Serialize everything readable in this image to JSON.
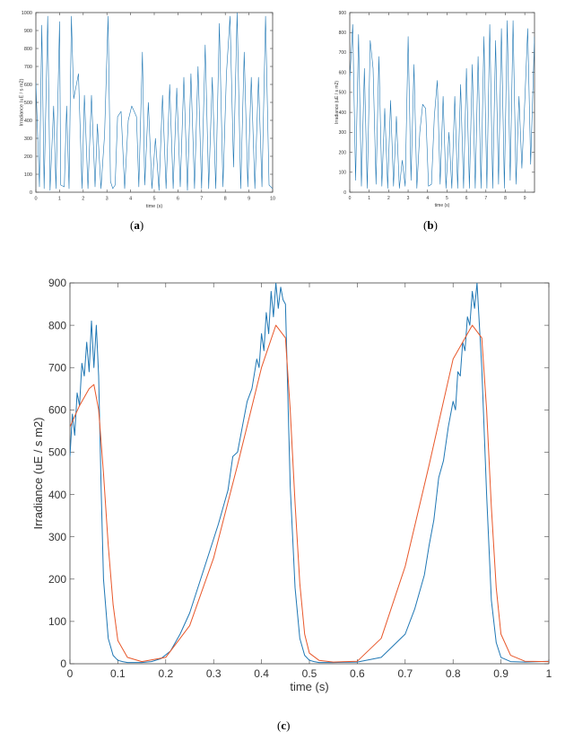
{
  "colors": {
    "series_blue": "#1f77b4",
    "series_red": "#e8572a",
    "axis": "#444444",
    "text": "#333333"
  },
  "labels": {
    "a": "a",
    "b": "b",
    "c": "c"
  },
  "chart_data": [
    {
      "type": "line",
      "ylabel": "Irradiance (uE / s m2)",
      "xlabel": "time (s)",
      "xlim": [
        0,
        10
      ],
      "ylim": [
        0,
        1000
      ],
      "xticks": [
        0,
        1,
        2,
        3,
        4,
        5,
        6,
        7,
        8,
        9,
        10
      ],
      "yticks": [
        0,
        100,
        200,
        300,
        400,
        500,
        600,
        700,
        800,
        900,
        1000
      ],
      "series": [
        {
          "color": "#1f77b4",
          "x": [
            0,
            0.15,
            0.25,
            0.35,
            0.5,
            0.6,
            0.75,
            0.85,
            1.0,
            1.05,
            1.2,
            1.3,
            1.4,
            1.5,
            1.6,
            1.8,
            1.95,
            2.05,
            2.2,
            2.35,
            2.5,
            2.6,
            2.75,
            2.9,
            3.05,
            3.15,
            3.25,
            3.35,
            3.45,
            3.6,
            3.75,
            3.9,
            4.05,
            4.15,
            4.25,
            4.35,
            4.5,
            4.6,
            4.75,
            4.9,
            5.05,
            5.2,
            5.35,
            5.5,
            5.65,
            5.8,
            5.95,
            6.1,
            6.25,
            6.4,
            6.55,
            6.7,
            6.85,
            7.0,
            7.15,
            7.3,
            7.45,
            7.6,
            7.75,
            7.9,
            8.05,
            8.2,
            8.35,
            8.5,
            8.65,
            8.8,
            8.95,
            9.1,
            9.25,
            9.4,
            9.55,
            9.7,
            9.85,
            10.0
          ],
          "y": [
            610,
            30,
            930,
            20,
            980,
            10,
            480,
            20,
            950,
            40,
            30,
            480,
            20,
            980,
            520,
            660,
            20,
            540,
            20,
            540,
            30,
            380,
            20,
            320,
            980,
            60,
            20,
            40,
            420,
            450,
            20,
            400,
            480,
            450,
            420,
            30,
            780,
            40,
            500,
            20,
            300,
            10,
            540,
            20,
            600,
            20,
            580,
            30,
            640,
            10,
            660,
            20,
            700,
            20,
            820,
            20,
            640,
            20,
            940,
            30,
            660,
            980,
            140,
            1000,
            20,
            780,
            30,
            640,
            20,
            640,
            30,
            980,
            40,
            20
          ]
        }
      ]
    },
    {
      "type": "line",
      "ylabel": "Irradiance (uE / s m2)",
      "xlabel": "time (s)",
      "xlim": [
        0,
        9.5
      ],
      "ylim": [
        0,
        900
      ],
      "xticks": [
        0,
        1,
        2,
        3,
        4,
        5,
        6,
        7,
        8,
        9
      ],
      "yticks": [
        0,
        100,
        200,
        300,
        400,
        500,
        600,
        700,
        800,
        900
      ],
      "series": [
        {
          "color": "#1f77b4",
          "x": [
            0,
            0.15,
            0.3,
            0.45,
            0.6,
            0.75,
            0.9,
            1.05,
            1.2,
            1.35,
            1.5,
            1.65,
            1.8,
            1.95,
            2.1,
            2.25,
            2.4,
            2.55,
            2.7,
            2.85,
            3.0,
            3.15,
            3.3,
            3.45,
            3.6,
            3.75,
            3.9,
            4.05,
            4.2,
            4.35,
            4.5,
            4.65,
            4.8,
            4.95,
            5.1,
            5.25,
            5.4,
            5.55,
            5.7,
            5.85,
            6.0,
            6.15,
            6.3,
            6.45,
            6.6,
            6.75,
            6.9,
            7.05,
            7.2,
            7.35,
            7.5,
            7.65,
            7.8,
            7.95,
            8.1,
            8.25,
            8.4,
            8.55,
            8.7,
            8.85,
            9.0,
            9.15,
            9.3,
            9.5
          ],
          "y": [
            560,
            840,
            60,
            790,
            30,
            620,
            20,
            760,
            620,
            40,
            680,
            30,
            420,
            20,
            460,
            30,
            380,
            20,
            160,
            30,
            780,
            60,
            640,
            20,
            300,
            440,
            420,
            30,
            40,
            380,
            560,
            40,
            480,
            20,
            300,
            20,
            480,
            20,
            540,
            20,
            620,
            20,
            640,
            20,
            680,
            20,
            780,
            20,
            840,
            20,
            760,
            40,
            820,
            20,
            860,
            60,
            860,
            40,
            480,
            120,
            460,
            820,
            140,
            780
          ]
        }
      ]
    },
    {
      "type": "line",
      "ylabel": "Irradiance (uE / s m2)",
      "xlabel": "time (s)",
      "xlim": [
        0,
        1
      ],
      "ylim": [
        0,
        900
      ],
      "xticks": [
        "0",
        "0.1",
        "0.2",
        "0.3",
        "0.4",
        "0.5",
        "0.6",
        "0.7",
        "0.8",
        "0.9",
        "1"
      ],
      "yticks": [
        0,
        100,
        200,
        300,
        400,
        500,
        600,
        700,
        800,
        900
      ],
      "series": [
        {
          "color": "#1f77b4",
          "x": [
            0,
            0.005,
            0.01,
            0.015,
            0.02,
            0.025,
            0.03,
            0.035,
            0.04,
            0.045,
            0.05,
            0.055,
            0.06,
            0.065,
            0.07,
            0.08,
            0.09,
            0.1,
            0.11,
            0.12,
            0.13,
            0.15,
            0.17,
            0.19,
            0.21,
            0.23,
            0.25,
            0.27,
            0.29,
            0.31,
            0.33,
            0.34,
            0.35,
            0.36,
            0.37,
            0.38,
            0.39,
            0.395,
            0.4,
            0.405,
            0.41,
            0.415,
            0.42,
            0.425,
            0.43,
            0.435,
            0.44,
            0.445,
            0.45,
            0.46,
            0.47,
            0.48,
            0.49,
            0.5,
            0.51,
            0.52,
            0.55,
            0.6,
            0.65,
            0.7,
            0.72,
            0.74,
            0.75,
            0.76,
            0.77,
            0.78,
            0.79,
            0.8,
            0.805,
            0.81,
            0.815,
            0.82,
            0.825,
            0.83,
            0.835,
            0.84,
            0.845,
            0.85,
            0.86,
            0.87,
            0.88,
            0.89,
            0.9,
            0.92,
            0.95,
            1.0
          ],
          "y": [
            490,
            590,
            540,
            640,
            610,
            710,
            680,
            760,
            690,
            810,
            700,
            800,
            680,
            420,
            200,
            60,
            20,
            8,
            5,
            3,
            3,
            3,
            5,
            12,
            30,
            70,
            120,
            190,
            260,
            330,
            410,
            490,
            500,
            560,
            620,
            650,
            720,
            700,
            780,
            740,
            830,
            780,
            880,
            820,
            900,
            840,
            890,
            860,
            850,
            420,
            180,
            60,
            20,
            8,
            5,
            3,
            3,
            4,
            15,
            70,
            130,
            210,
            280,
            340,
            440,
            480,
            560,
            620,
            600,
            690,
            680,
            760,
            740,
            820,
            800,
            880,
            840,
            900,
            700,
            400,
            150,
            50,
            15,
            5,
            4,
            6
          ]
        },
        {
          "color": "#e8572a",
          "x": [
            0,
            0.02,
            0.04,
            0.05,
            0.06,
            0.07,
            0.08,
            0.09,
            0.1,
            0.12,
            0.15,
            0.2,
            0.25,
            0.3,
            0.35,
            0.4,
            0.43,
            0.45,
            0.46,
            0.47,
            0.48,
            0.49,
            0.5,
            0.52,
            0.55,
            0.6,
            0.65,
            0.7,
            0.75,
            0.8,
            0.84,
            0.86,
            0.87,
            0.88,
            0.89,
            0.9,
            0.92,
            0.95,
            1.0
          ],
          "y": [
            560,
            610,
            650,
            660,
            600,
            450,
            280,
            140,
            55,
            15,
            5,
            15,
            90,
            250,
            470,
            700,
            800,
            770,
            600,
            380,
            190,
            70,
            25,
            8,
            4,
            6,
            60,
            230,
            470,
            720,
            800,
            770,
            600,
            370,
            180,
            70,
            20,
            6,
            5
          ]
        }
      ]
    }
  ]
}
